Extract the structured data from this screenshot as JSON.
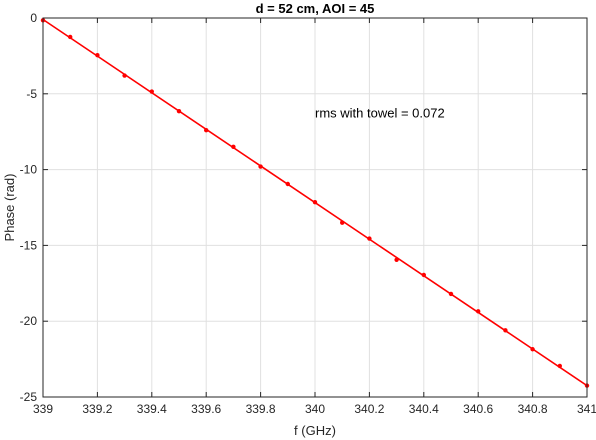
{
  "chart_data": {
    "type": "scatter",
    "title": "d = 52 cm, AOI = 45",
    "xlabel": "f (GHz)",
    "ylabel": "Phase (rad)",
    "xlim": [
      339,
      341
    ],
    "ylim": [
      -25,
      0
    ],
    "xticks": [
      339,
      339.2,
      339.4,
      339.6,
      339.8,
      340,
      340.2,
      340.4,
      340.6,
      340.8,
      341
    ],
    "xtick_labels": [
      "339",
      "339.2",
      "339.4",
      "339.6",
      "339.8",
      "340",
      "340.2",
      "340.4",
      "340.6",
      "340.8",
      "341"
    ],
    "yticks": [
      0,
      -5,
      -10,
      -15,
      -20,
      -25
    ],
    "ytick_labels": [
      "0",
      "-5",
      "-10",
      "-15",
      "-20",
      "-25"
    ],
    "grid": true,
    "annotation": {
      "text": "rms with towel = 0.072",
      "x": 340.0,
      "y": -6.3
    },
    "series": [
      {
        "kind": "points",
        "color": "#ff0000",
        "x": [
          339.0,
          339.1,
          339.2,
          339.3,
          339.4,
          339.5,
          339.6,
          339.7,
          339.8,
          339.9,
          340.0,
          340.1,
          340.2,
          340.3,
          340.4,
          340.5,
          340.6,
          340.7,
          340.8,
          340.9,
          341.0
        ],
        "y": [
          -0.15,
          -1.25,
          -2.45,
          -3.8,
          -4.85,
          -6.15,
          -7.4,
          -8.5,
          -9.8,
          -10.95,
          -12.15,
          -13.5,
          -14.55,
          -15.95,
          -16.95,
          -18.2,
          -19.35,
          -20.6,
          -21.85,
          -22.95,
          -24.25
        ]
      },
      {
        "kind": "fit-line",
        "color": "#ff0000",
        "x": [
          339.0,
          341.0
        ],
        "y": [
          -0.1,
          -24.25
        ]
      }
    ]
  }
}
